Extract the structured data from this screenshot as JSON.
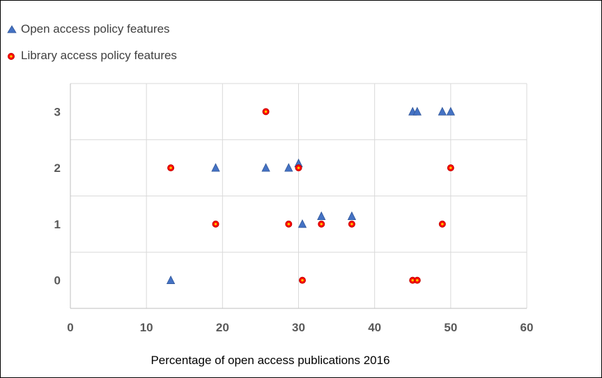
{
  "chart_data": {
    "type": "scatter",
    "title": "",
    "xlabel": "Percentage of open access publications 2016",
    "ylabel": "",
    "xlim": [
      0,
      60
    ],
    "ylim": [
      -0.5,
      3.5
    ],
    "x_ticks": [
      0,
      10,
      20,
      30,
      40,
      50,
      60
    ],
    "y_ticks": [
      0,
      1,
      2,
      3
    ],
    "grid": true,
    "legend_position": "top-left",
    "series": [
      {
        "name": "Open access policy features",
        "marker": "triangle",
        "color": "#4472C4",
        "points": [
          {
            "x": 13.2,
            "y": 0
          },
          {
            "x": 19.1,
            "y": 2
          },
          {
            "x": 25.7,
            "y": 2
          },
          {
            "x": 28.7,
            "y": 2
          },
          {
            "x": 30.0,
            "y": 2.08
          },
          {
            "x": 30.5,
            "y": 1
          },
          {
            "x": 33.0,
            "y": 1.14
          },
          {
            "x": 37.0,
            "y": 1.14
          },
          {
            "x": 45.0,
            "y": 3
          },
          {
            "x": 45.6,
            "y": 3
          },
          {
            "x": 48.9,
            "y": 3
          },
          {
            "x": 50.0,
            "y": 3
          }
        ]
      },
      {
        "name": "Library access policy features",
        "marker": "circle",
        "color": "#FF0000",
        "points": [
          {
            "x": 13.2,
            "y": 2
          },
          {
            "x": 19.1,
            "y": 1
          },
          {
            "x": 25.7,
            "y": 3
          },
          {
            "x": 28.7,
            "y": 1
          },
          {
            "x": 30.0,
            "y": 2
          },
          {
            "x": 30.5,
            "y": 0
          },
          {
            "x": 33.0,
            "y": 1
          },
          {
            "x": 37.0,
            "y": 1
          },
          {
            "x": 45.0,
            "y": 0
          },
          {
            "x": 45.6,
            "y": 0
          },
          {
            "x": 48.9,
            "y": 1
          },
          {
            "x": 50.0,
            "y": 2
          }
        ]
      }
    ]
  }
}
